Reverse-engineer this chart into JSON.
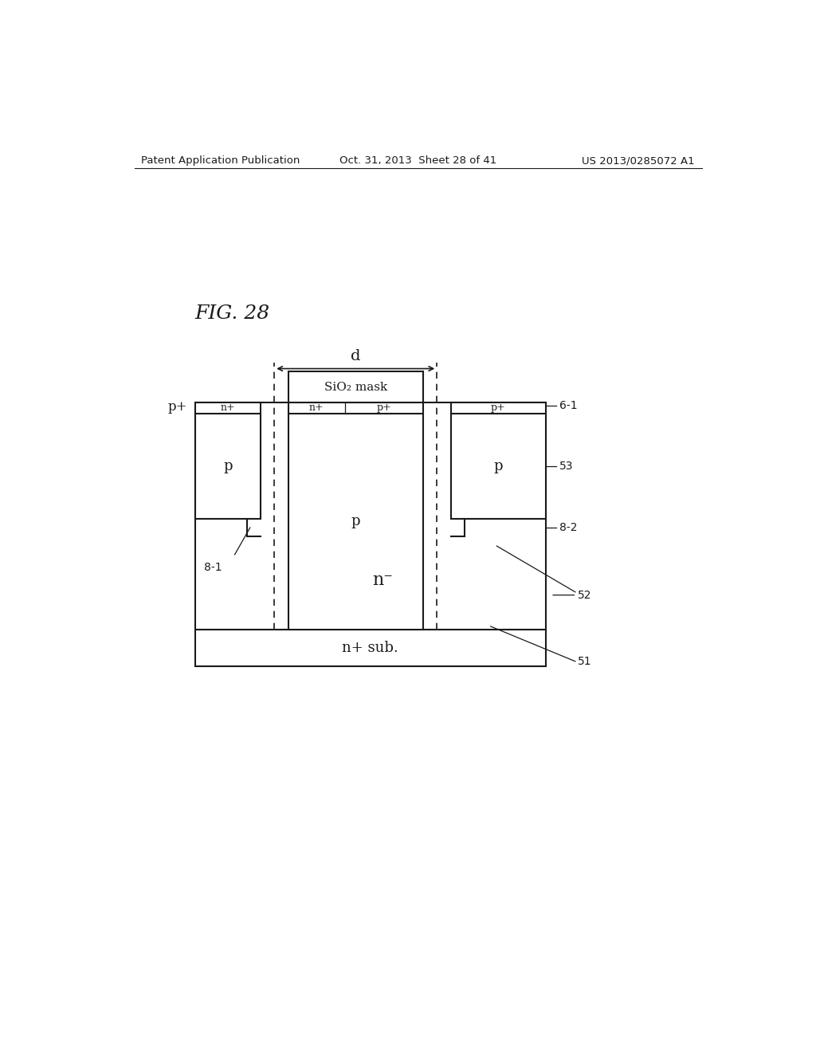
{
  "header_left": "Patent Application Publication",
  "header_center": "Oct. 31, 2013  Sheet 28 of 41",
  "header_right": "US 2013/0285072 A1",
  "bg_color": "#ffffff",
  "line_color": "#1a1a1a",
  "fig_label": "FIG. 28",
  "labels": {
    "p_plus_left": "p+",
    "n_minus_region": "n⁻",
    "n_plus_sub": "n+ sub.",
    "p_region_left": "p",
    "p_region_center": "p",
    "p_region_right": "p",
    "n_plus_left_stripe": "n+",
    "n_plus_center_stripe": "n+",
    "p_plus_center_stripe": "p+",
    "p_plus_right_stripe": "p+",
    "sio2_mask": "SiO₂ mask",
    "d_label": "d",
    "ref_51": "51",
    "ref_52": "52",
    "ref_53": "53",
    "ref_61": "6-1",
    "ref_81": "8-1",
    "ref_82": "8-2"
  }
}
